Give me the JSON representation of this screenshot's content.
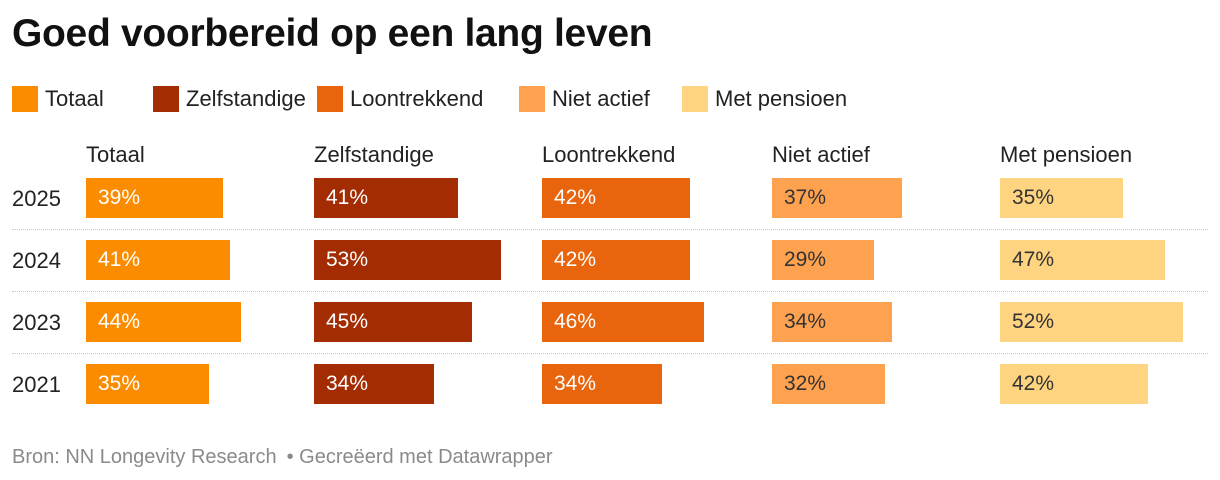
{
  "title": "Goed voorbereid op een lang leven",
  "chart_data": {
    "type": "bar",
    "title": "Goed voorbereid op een lang leven",
    "categories": [
      "2025",
      "2024",
      "2023",
      "2021"
    ],
    "series": [
      {
        "name": "Totaal",
        "color": "#fb8c00",
        "text_color": "#ffffff",
        "values": [
          39,
          41,
          44,
          35
        ],
        "labels": [
          "39%",
          "41%",
          "44%",
          "35%"
        ]
      },
      {
        "name": "Zelfstandige",
        "color": "#a32c02",
        "text_color": "#ffffff",
        "values": [
          41,
          53,
          45,
          34
        ],
        "labels": [
          "41%",
          "53%",
          "45%",
          "34%"
        ]
      },
      {
        "name": "Loontrekkend",
        "color": "#e8650e",
        "text_color": "#ffffff",
        "values": [
          42,
          42,
          46,
          34
        ],
        "labels": [
          "42%",
          "42%",
          "46%",
          "34%"
        ]
      },
      {
        "name": "Niet actief",
        "color": "#fea24f",
        "text_color": "#333333",
        "values": [
          37,
          29,
          34,
          32
        ],
        "labels": [
          "37%",
          "29%",
          "34%",
          "32%"
        ]
      },
      {
        "name": "Met pensioen",
        "color": "#fed481",
        "text_color": "#333333",
        "values": [
          35,
          47,
          52,
          42
        ],
        "labels": [
          "35%",
          "47%",
          "52%",
          "42%"
        ]
      }
    ],
    "value_unit": "%",
    "xlim": [
      0,
      55
    ],
    "legend_position": "top-left",
    "grid": false
  },
  "legend": [
    {
      "label": "Totaal"
    },
    {
      "label": "Zelfstandige"
    },
    {
      "label": "Loontrekkend"
    },
    {
      "label": "Niet actief"
    },
    {
      "label": "Met pensioen"
    }
  ],
  "source": {
    "label": "Bron: NN Longevity Research",
    "credit": "• Gecreëerd met Datawrapper"
  }
}
